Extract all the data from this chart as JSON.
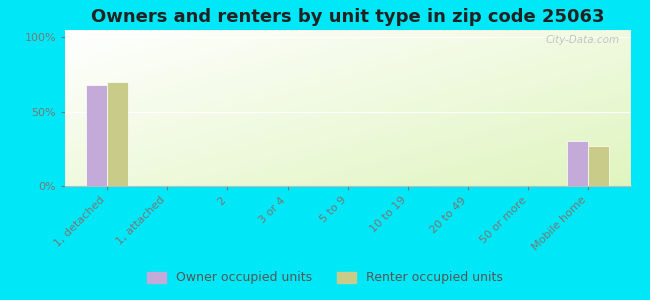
{
  "title": "Owners and renters by unit type in zip code 25063",
  "categories": [
    "1, detached",
    "1, attached",
    "2",
    "3 or 4",
    "5 to 9",
    "10 to 19",
    "20 to 49",
    "50 or more",
    "Mobile home"
  ],
  "owner_values": [
    68,
    0,
    0,
    0,
    0,
    0,
    0,
    0,
    30
  ],
  "renter_values": [
    70,
    0,
    0,
    0,
    0,
    0,
    0,
    0,
    27
  ],
  "owner_color": "#c4aad8",
  "renter_color": "#c8cc88",
  "outer_bg": "#00e8f8",
  "yticks": [
    0,
    50,
    100
  ],
  "ylabels": [
    "0%",
    "50%",
    "100%"
  ],
  "ylim": [
    0,
    105
  ],
  "bar_width": 0.35,
  "title_fontsize": 13,
  "tick_fontsize": 8,
  "legend_fontsize": 9,
  "watermark": "City-Data.com",
  "bg_colors": [
    "#c8e8a0",
    "#f0fae8"
  ],
  "grid_color": "#ffffff"
}
